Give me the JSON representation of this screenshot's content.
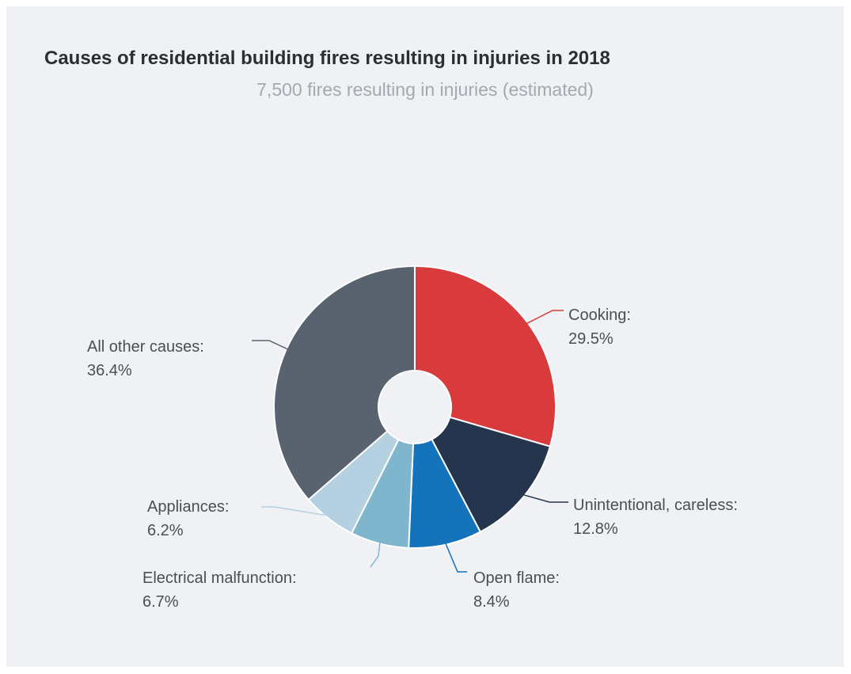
{
  "chart_data": {
    "type": "pie",
    "title": "Causes of residential building fires resulting in injuries in 2018",
    "subtitle": "7,500 fires resulting in injuries (estimated)",
    "slices": [
      {
        "name": "Cooking:",
        "value": 29.5,
        "label": "29.5%",
        "color": "#d93a3c"
      },
      {
        "name": "Unintentional, careless:",
        "value": 12.8,
        "label": "12.8%",
        "color": "#24354d"
      },
      {
        "name": "Open flame:",
        "value": 8.4,
        "label": "8.4%",
        "color": "#1473bb"
      },
      {
        "name": "Electrical malfunction:",
        "value": 6.7,
        "label": "6.7%",
        "color": "#7fb5cd"
      },
      {
        "name": "Appliances:",
        "value": 6.2,
        "label": "6.2%",
        "color": "#b5d1e1"
      },
      {
        "name": "All other causes:",
        "value": 36.4,
        "label": "36.4%",
        "color": "#59636f"
      }
    ]
  }
}
